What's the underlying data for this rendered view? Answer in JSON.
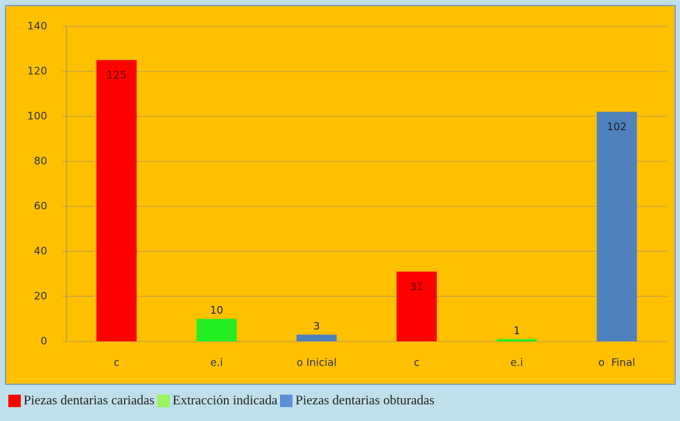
{
  "chart_data": {
    "type": "bar",
    "categories": [
      "c",
      "e.i",
      "o Inicial",
      "c",
      "e.i",
      "o  Final"
    ],
    "values": [
      125,
      10,
      3,
      31,
      1,
      102
    ],
    "colors": [
      "#ff0000",
      "#22ee22",
      "#4f81bd",
      "#ff0000",
      "#22ee22",
      "#4f81bd"
    ],
    "ylim": [
      0,
      140
    ],
    "yticks": [
      0,
      20,
      40,
      60,
      80,
      100,
      120,
      140
    ],
    "grid": true,
    "legend": [
      {
        "name": "Piezas dentarias cariadas",
        "color": "#ff0000"
      },
      {
        "name": "Extracción indicada",
        "color": "#99f55a"
      },
      {
        "name": "Piezas dentarias obturadas",
        "color": "#5b8fd6"
      }
    ]
  }
}
